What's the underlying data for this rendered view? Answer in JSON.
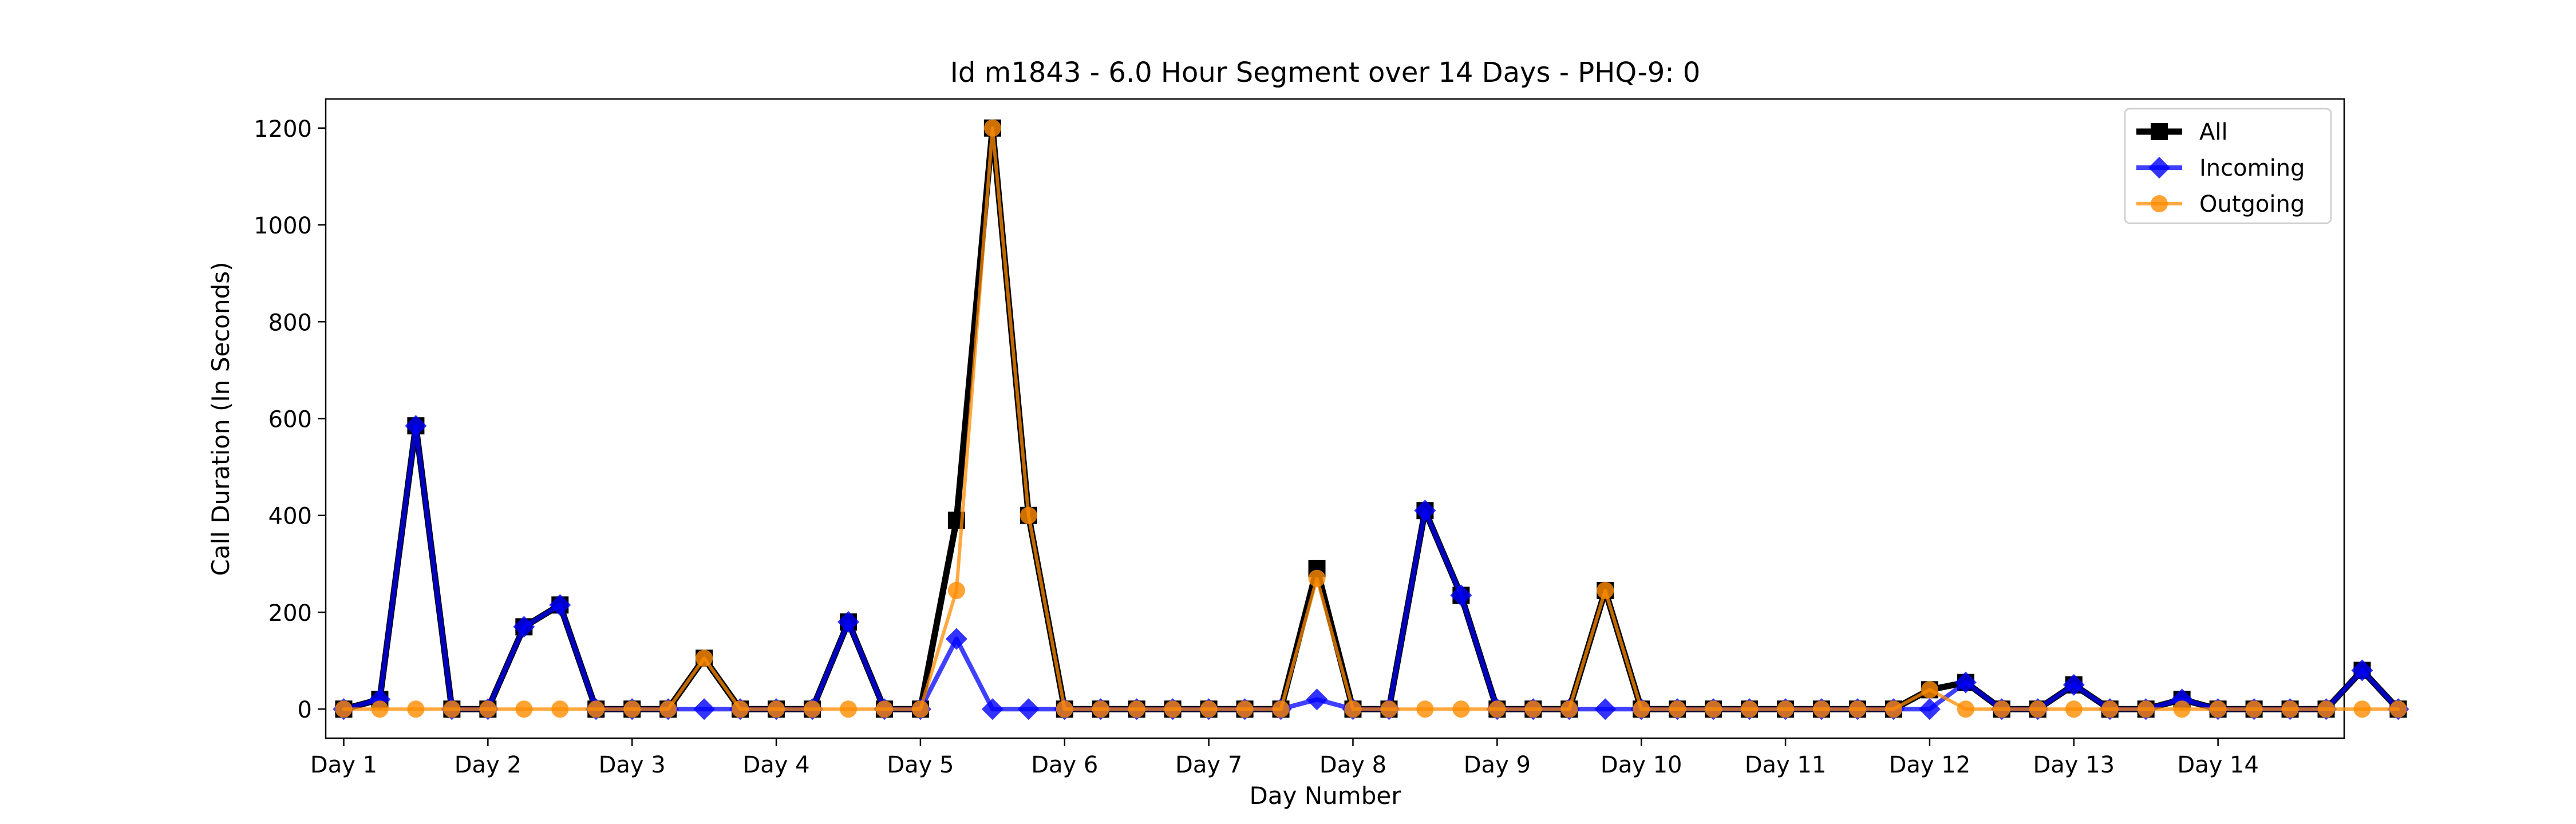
{
  "chart_data": {
    "type": "line",
    "title": "Id m1843 - 6.0 Hour Segment over 14 Days - PHQ-9: 0",
    "xlabel": "Day Number",
    "ylabel": "Call Duration (In Seconds)",
    "xlim": [
      -0.5,
      55.5
    ],
    "ylim": [
      -60,
      1260
    ],
    "yticks": [
      0,
      200,
      400,
      600,
      800,
      1000,
      1200
    ],
    "x_tick_positions": [
      0,
      4,
      8,
      12,
      16,
      20,
      24,
      28,
      32,
      36,
      40,
      44,
      48,
      52
    ],
    "x_tick_labels": [
      "Day 1",
      "Day 2",
      "Day 3",
      "Day 4",
      "Day 5",
      "Day 6",
      "Day 7",
      "Day 8",
      "Day 9",
      "Day 10",
      "Day 11",
      "Day 12",
      "Day 13",
      "Day 14"
    ],
    "grid": false,
    "legend_position": "top-right",
    "series": [
      {
        "name": "All",
        "color": "#000000",
        "marker": "square",
        "values": [
          0,
          20,
          585,
          0,
          0,
          170,
          215,
          0,
          0,
          0,
          105,
          0,
          0,
          0,
          180,
          0,
          0,
          390,
          1200,
          400,
          0,
          0,
          0,
          0,
          0,
          0,
          0,
          290,
          0,
          0,
          410,
          235,
          0,
          0,
          0,
          245,
          0,
          0,
          0,
          0,
          0,
          0,
          0,
          0,
          40,
          55,
          0,
          0,
          50,
          0,
          0,
          20,
          0,
          0,
          0,
          0,
          80,
          0
        ]
      },
      {
        "name": "Incoming",
        "color": "#0000ff",
        "marker": "diamond",
        "values": [
          0,
          20,
          585,
          0,
          0,
          170,
          215,
          0,
          0,
          0,
          0,
          0,
          0,
          0,
          180,
          0,
          0,
          145,
          0,
          0,
          0,
          0,
          0,
          0,
          0,
          0,
          0,
          20,
          0,
          0,
          410,
          235,
          0,
          0,
          0,
          0,
          0,
          0,
          0,
          0,
          0,
          0,
          0,
          0,
          0,
          55,
          0,
          0,
          50,
          0,
          0,
          20,
          0,
          0,
          0,
          0,
          80,
          0
        ]
      },
      {
        "name": "Outgoing",
        "color": "#ff8c00",
        "marker": "circle",
        "values": [
          0,
          0,
          0,
          0,
          0,
          0,
          0,
          0,
          0,
          0,
          105,
          0,
          0,
          0,
          0,
          0,
          0,
          245,
          1200,
          400,
          0,
          0,
          0,
          0,
          0,
          0,
          0,
          270,
          0,
          0,
          0,
          0,
          0,
          0,
          0,
          245,
          0,
          0,
          0,
          0,
          0,
          0,
          0,
          0,
          40,
          0,
          0,
          0,
          0,
          0,
          0,
          0,
          0,
          0,
          0,
          0,
          0,
          0
        ]
      }
    ]
  }
}
